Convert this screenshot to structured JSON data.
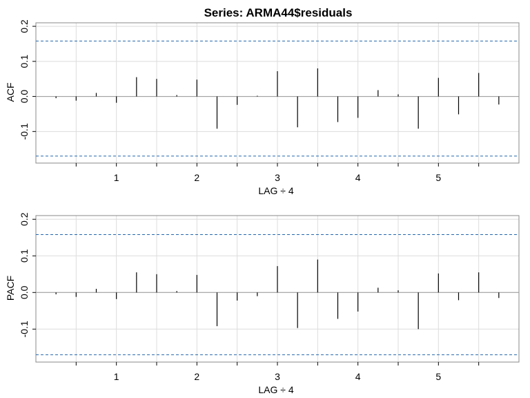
{
  "title": "Series:  ARMA44$residuals",
  "colors": {
    "ci_line": "#2166ac",
    "grid": "#dcdcdc",
    "bar": "#000000",
    "frame": "#888888"
  },
  "chart_data": [
    {
      "type": "bar",
      "ylabel": "ACF",
      "xlabel": "LAG ÷ 4",
      "xlim": [
        0,
        6
      ],
      "ylim": [
        -0.19,
        0.21
      ],
      "xticks": [
        1,
        2,
        3,
        4,
        5
      ],
      "yticks": [
        -0.1,
        0.0,
        0.1,
        0.2
      ],
      "ytick_labels": [
        "-0.1",
        "0.0",
        "0.1",
        "0.2"
      ],
      "ci": [
        0.158,
        -0.17
      ],
      "lags": [
        0.25,
        0.5,
        0.75,
        1.0,
        1.25,
        1.5,
        1.75,
        2.0,
        2.25,
        2.5,
        2.75,
        3.0,
        3.25,
        3.5,
        3.75,
        4.0,
        4.25,
        4.5,
        4.75,
        5.0,
        5.25,
        5.5,
        5.75
      ],
      "values": [
        -0.005,
        -0.012,
        0.01,
        -0.018,
        0.055,
        0.05,
        0.004,
        0.048,
        -0.092,
        -0.024,
        0.002,
        0.072,
        -0.088,
        0.08,
        -0.073,
        -0.061,
        0.018,
        0.006,
        -0.092,
        0.053,
        -0.051,
        0.067,
        -0.023
      ],
      "grid": true
    },
    {
      "type": "bar",
      "ylabel": "PACF",
      "xlabel": "LAG ÷ 4",
      "xlim": [
        0,
        6
      ],
      "ylim": [
        -0.19,
        0.21
      ],
      "xticks": [
        1,
        2,
        3,
        4,
        5
      ],
      "yticks": [
        -0.1,
        0.0,
        0.1,
        0.2
      ],
      "ytick_labels": [
        "-0.1",
        "0.0",
        "0.1",
        "0.2"
      ],
      "ci": [
        0.158,
        -0.17
      ],
      "lags": [
        0.25,
        0.5,
        0.75,
        1.0,
        1.25,
        1.5,
        1.75,
        2.0,
        2.25,
        2.5,
        2.75,
        3.0,
        3.25,
        3.5,
        3.75,
        4.0,
        4.25,
        4.5,
        4.75,
        5.0,
        5.25,
        5.5,
        5.75
      ],
      "values": [
        -0.005,
        -0.012,
        0.01,
        -0.018,
        0.055,
        0.05,
        0.004,
        0.048,
        -0.092,
        -0.022,
        -0.01,
        0.072,
        -0.097,
        0.09,
        -0.072,
        -0.052,
        0.013,
        0.006,
        -0.1,
        0.052,
        -0.021,
        0.055,
        -0.015
      ],
      "grid": true
    }
  ]
}
